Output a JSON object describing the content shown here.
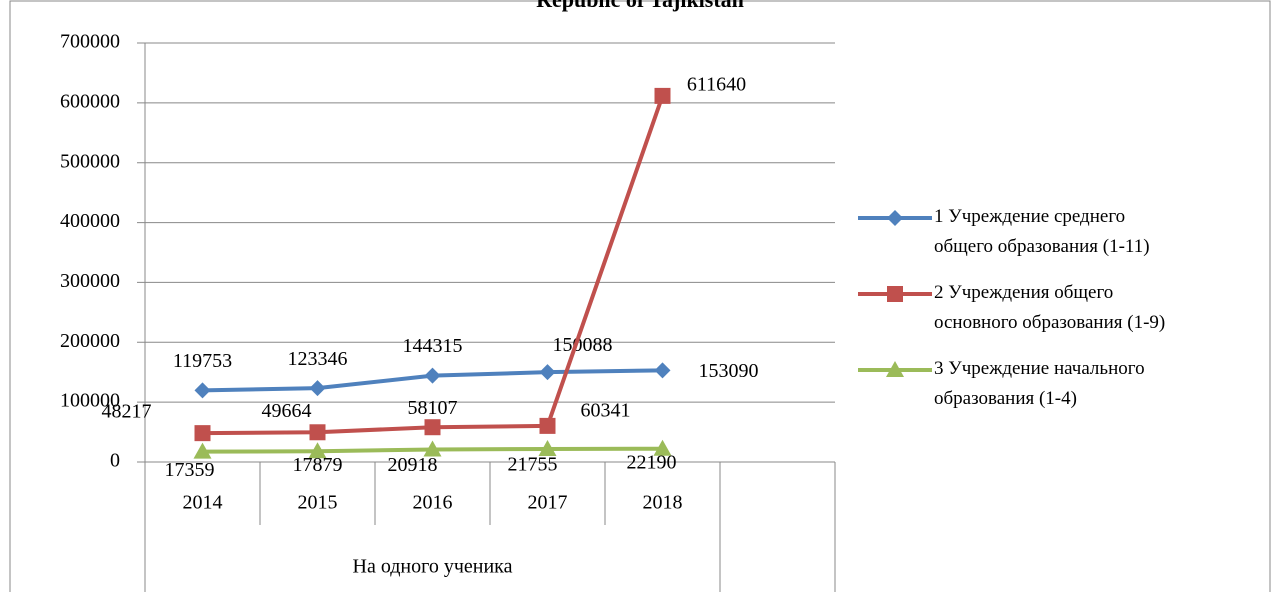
{
  "chart_data": {
    "type": "line",
    "title": "Republic of Tajikistan",
    "categories": [
      "2014",
      "2015",
      "2016",
      "2017",
      "2018",
      null
    ],
    "category_group": "На одного ученика",
    "series": [
      {
        "name": "1 Учреждение среднего общего образования (1-11)",
        "color": "#4F81BD",
        "marker": "diamond",
        "values": [
          119753,
          123346,
          144315,
          150088,
          153090,
          null
        ]
      },
      {
        "name": "2 Учреждения общего основного образования (1-9)",
        "color": "#C0504D",
        "marker": "square",
        "values": [
          48217,
          49664,
          58107,
          60341,
          611640,
          null
        ]
      },
      {
        "name": "3 Учреждение начального образования (1-4)",
        "color": "#9BBB59",
        "marker": "triangle",
        "values": [
          17359,
          17879,
          20918,
          21755,
          22190,
          null
        ]
      }
    ],
    "ylim": [
      0,
      700000
    ],
    "yticks": [
      0,
      100000,
      200000,
      300000,
      400000,
      500000,
      600000,
      700000
    ],
    "grid": true,
    "legend": "right"
  }
}
